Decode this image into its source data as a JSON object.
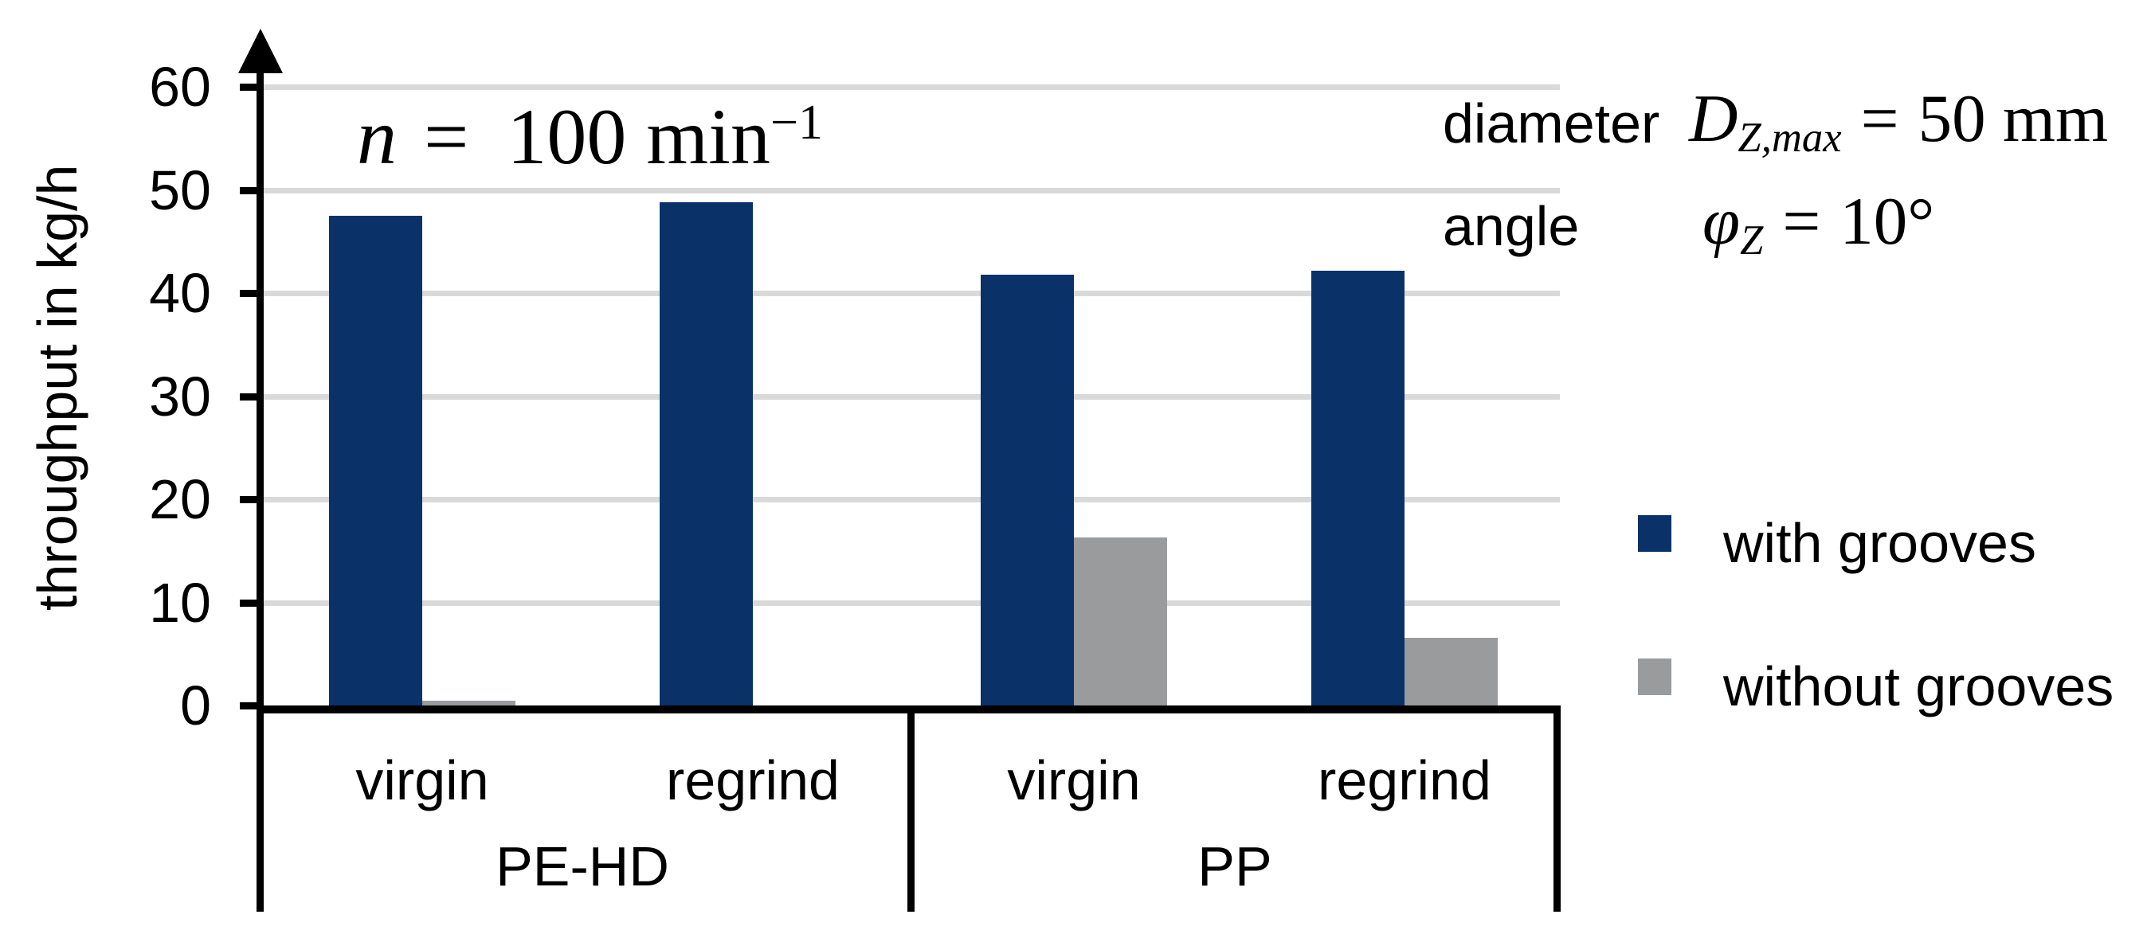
{
  "chart_data": {
    "type": "bar",
    "title": "",
    "ylabel": "throughput in kg/h",
    "xlabel": "",
    "ylim": [
      0,
      60
    ],
    "yticks": [
      60,
      50,
      40,
      30,
      20,
      10,
      0
    ],
    "grid": true,
    "legend_position": "right",
    "groups": [
      {
        "label": "PE-HD",
        "categories": [
          "virgin",
          "regrind"
        ]
      },
      {
        "label": "PP",
        "categories": [
          "virgin",
          "regrind"
        ]
      }
    ],
    "category_slots": [
      "PE-HD virgin",
      "PE-HD regrind",
      "PP virgin",
      "PP regrind"
    ],
    "series": [
      {
        "name": "with grooves",
        "color": "#0b3268",
        "values": [
          47.5,
          48.8,
          41.8,
          42.2
        ]
      },
      {
        "name": "without grooves",
        "color": "#999b9d",
        "values": [
          0.5,
          0,
          16.3,
          6.6
        ]
      }
    ],
    "annotations": {
      "speed": {
        "var": "n",
        "eq": "=",
        "value": "100",
        "unit": "min",
        "exponent": "−1"
      },
      "diameter": {
        "label": "diameter",
        "symbol": "D",
        "subscript": "Z,max",
        "eq": "=",
        "value": "50 mm"
      },
      "angle": {
        "label": "angle",
        "symbol": "φ",
        "subscript": "Z",
        "eq": "=",
        "value": "10°"
      }
    },
    "colors": {
      "bar_blue": "#0b3268",
      "bar_gray": "#999b9d",
      "gridline": "#d9d9d9",
      "axis": "#000000"
    }
  }
}
